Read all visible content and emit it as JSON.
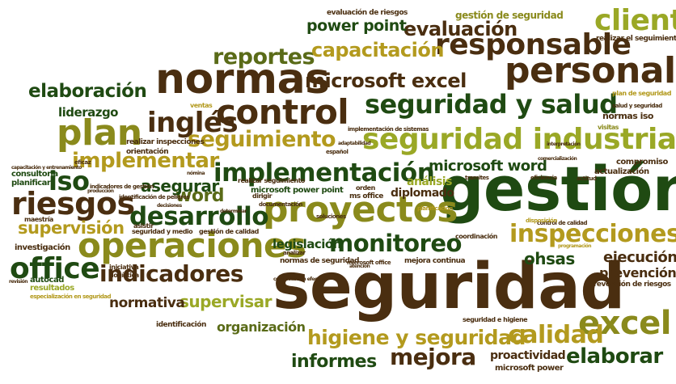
{
  "words": [
    {
      "text": "seguridad",
      "color": "#4a2e10"
    },
    {
      "text": "gestión",
      "color": "#1f4a12"
    },
    {
      "text": "normas",
      "color": "#4a2e10"
    },
    {
      "text": "control",
      "color": "#4a2e10"
    },
    {
      "text": "proyectos",
      "color": "#8a8a1c"
    },
    {
      "text": "operaciones",
      "color": "#8a8a1c"
    },
    {
      "text": "plan",
      "color": "#8a8a1c"
    },
    {
      "text": "personal",
      "color": "#4a2e10"
    },
    {
      "text": "seguridad industrial",
      "color": "#9aa826"
    },
    {
      "text": "seguridad y salud",
      "color": "#1f4a12"
    },
    {
      "text": "inglés",
      "color": "#4a2e10"
    },
    {
      "text": "responsable",
      "color": "#4a2e10"
    },
    {
      "text": "implementación",
      "color": "#1f4a12"
    },
    {
      "text": "riesgos",
      "color": "#4a2e10"
    },
    {
      "text": "desarrollo",
      "color": "#1f4a12"
    },
    {
      "text": "excel",
      "color": "#8a8a1c"
    },
    {
      "text": "office",
      "color": "#1f4a12"
    },
    {
      "text": "inspecciones",
      "color": "#b39a1e"
    },
    {
      "text": "indicadores",
      "color": "#4a2e10"
    },
    {
      "text": "monitoreo",
      "color": "#1f4a12"
    },
    {
      "text": "cliente",
      "color": "#9aa826"
    },
    {
      "text": "implementar",
      "color": "#b39a1e"
    },
    {
      "text": "seguimiento",
      "color": "#b39a1e"
    },
    {
      "text": "reportes",
      "color": "#5a6b18"
    },
    {
      "text": "capacitación",
      "color": "#b39a1e"
    },
    {
      "text": "microsoft excel",
      "color": "#4a2e10"
    },
    {
      "text": "elaboración",
      "color": "#1f4a12"
    },
    {
      "text": "evaluación",
      "color": "#4a2e10"
    },
    {
      "text": "power point",
      "color": "#1f4a12"
    },
    {
      "text": "supervisión",
      "color": "#b39a1e"
    },
    {
      "text": "iso",
      "color": "#1f4a12"
    },
    {
      "text": "word",
      "color": "#5a6b18"
    },
    {
      "text": "higiene y seguridad",
      "color": "#b39a1e"
    },
    {
      "text": "calidad",
      "color": "#b39a1e"
    },
    {
      "text": "mejora",
      "color": "#4a2e10"
    },
    {
      "text": "informes",
      "color": "#1f4a12"
    },
    {
      "text": "elaborar",
      "color": "#1f4a12"
    },
    {
      "text": "supervisar",
      "color": "#9aa826"
    },
    {
      "text": "normativa",
      "color": "#4a2e10"
    },
    {
      "text": "asegurar",
      "color": "#1f4a12"
    },
    {
      "text": "microsoft word",
      "color": "#1f4a12"
    },
    {
      "text": "ohsas",
      "color": "#1f4a12"
    },
    {
      "text": "ejecución",
      "color": "#4a2e10"
    },
    {
      "text": "prevención",
      "color": "#4a2e10"
    },
    {
      "text": "legislación",
      "color": "#1f4a12"
    },
    {
      "text": "organización",
      "color": "#5a6b18"
    },
    {
      "text": "proactividad",
      "color": "#4a2e10"
    },
    {
      "text": "liderazgo",
      "color": "#1f4a12"
    },
    {
      "text": "análisis",
      "color": "#9aa826"
    },
    {
      "text": "diplomado",
      "color": "#4a2e10"
    },
    {
      "text": "gestión de seguridad",
      "color": "#8a8a1c"
    },
    {
      "text": "evaluación de riesgos",
      "color": "#4a2e10"
    },
    {
      "text": "realizar el seguimiento",
      "color": "#4a2e10"
    },
    {
      "text": "normas iso",
      "color": "#4a2e10"
    },
    {
      "text": "compromiso",
      "color": "#4a2e10"
    },
    {
      "text": "actualización",
      "color": "#4a2e10"
    },
    {
      "text": "microsoft power",
      "color": "#4a2e10"
    },
    {
      "text": "identificación",
      "color": "#4a2e10"
    },
    {
      "text": "realizar inspecciones",
      "color": "#4a2e10"
    },
    {
      "text": "orientación",
      "color": "#4a2e10"
    },
    {
      "text": "investigación",
      "color": "#4a2e10"
    },
    {
      "text": "consultoría",
      "color": "#1f4a12"
    },
    {
      "text": "planificar",
      "color": "#1f4a12"
    },
    {
      "text": "autocad",
      "color": "#1f4a12"
    },
    {
      "text": "resultados",
      "color": "#9aa826"
    },
    {
      "text": "maestría",
      "color": "#4a2e10"
    },
    {
      "text": "microsoft power point",
      "color": "#1f4a12"
    },
    {
      "text": "seguridad e higiene",
      "color": "#4a2e10"
    },
    {
      "text": "prevención de riesgos",
      "color": "#4a2e10"
    },
    {
      "text": "realizar seguimiento",
      "color": "#4a2e10"
    },
    {
      "text": "ms office",
      "color": "#4a2e10"
    },
    {
      "text": "coordinación",
      "color": "#4a2e10"
    },
    {
      "text": "mejora continua",
      "color": "#4a2e10"
    },
    {
      "text": "normas de seguridad",
      "color": "#4a2e10"
    },
    {
      "text": "gestión de calidad",
      "color": "#4a2e10"
    },
    {
      "text": "seguridad y medio",
      "color": "#4a2e10"
    },
    {
      "text": "iniciativa",
      "color": "#4a2e10"
    },
    {
      "text": "logística",
      "color": "#4a2e10"
    },
    {
      "text": "asistir",
      "color": "#4a2e10"
    },
    {
      "text": "eficaz",
      "color": "#4a2e10"
    },
    {
      "text": "visitas",
      "color": "#8a8a1c"
    },
    {
      "text": "plan de seguridad",
      "color": "#b39a1e"
    },
    {
      "text": "salud y seguridad",
      "color": "#4a2e10"
    },
    {
      "text": "ventas",
      "color": "#b39a1e"
    },
    {
      "text": "control de calidad",
      "color": "#4a2e10"
    },
    {
      "text": "disposición",
      "color": "#b39a1e"
    },
    {
      "text": "planificación",
      "color": "#b39a1e"
    },
    {
      "text": "dirigir",
      "color": "#4a2e10"
    },
    {
      "text": "documentación",
      "color": "#4a2e10"
    },
    {
      "text": "soluciones",
      "color": "#4a2e10"
    },
    {
      "text": "orden",
      "color": "#4a2e10"
    },
    {
      "text": "analizar",
      "color": "#4a2e10"
    },
    {
      "text": "microsoft office",
      "color": "#4a2e10"
    },
    {
      "text": "español",
      "color": "#4a2e10"
    },
    {
      "text": "identificación de peligros",
      "color": "#4a2e10"
    },
    {
      "text": "indicadores de gestión",
      "color": "#4a2e10"
    },
    {
      "text": "especialización en seguridad",
      "color": "#b39a1e"
    },
    {
      "text": "implementación de sistemas",
      "color": "#4a2e10"
    },
    {
      "text": "actitud",
      "color": "#4a2e10"
    },
    {
      "text": "producción",
      "color": "#4a2e10"
    },
    {
      "text": "comunicación efectiva",
      "color": "#4a2e10"
    },
    {
      "text": "capacitación y entrenamiento",
      "color": "#4a2e10"
    },
    {
      "text": "tramites",
      "color": "#4a2e10"
    },
    {
      "text": "eficiencia",
      "color": "#4a2e10"
    },
    {
      "text": "programación",
      "color": "#b39a1e"
    },
    {
      "text": "interpretación",
      "color": "#4a2e10"
    },
    {
      "text": "determinar",
      "color": "#4a2e10"
    },
    {
      "text": "decisiones",
      "color": "#4a2e10"
    },
    {
      "text": "nómina",
      "color": "#4a2e10"
    },
    {
      "text": "atención",
      "color": "#4a2e10"
    },
    {
      "text": "revisión",
      "color": "#4a2e10"
    },
    {
      "text": "adaptabilidad",
      "color": "#4a2e10"
    },
    {
      "text": "comercialización",
      "color": "#4a2e10"
    }
  ]
}
